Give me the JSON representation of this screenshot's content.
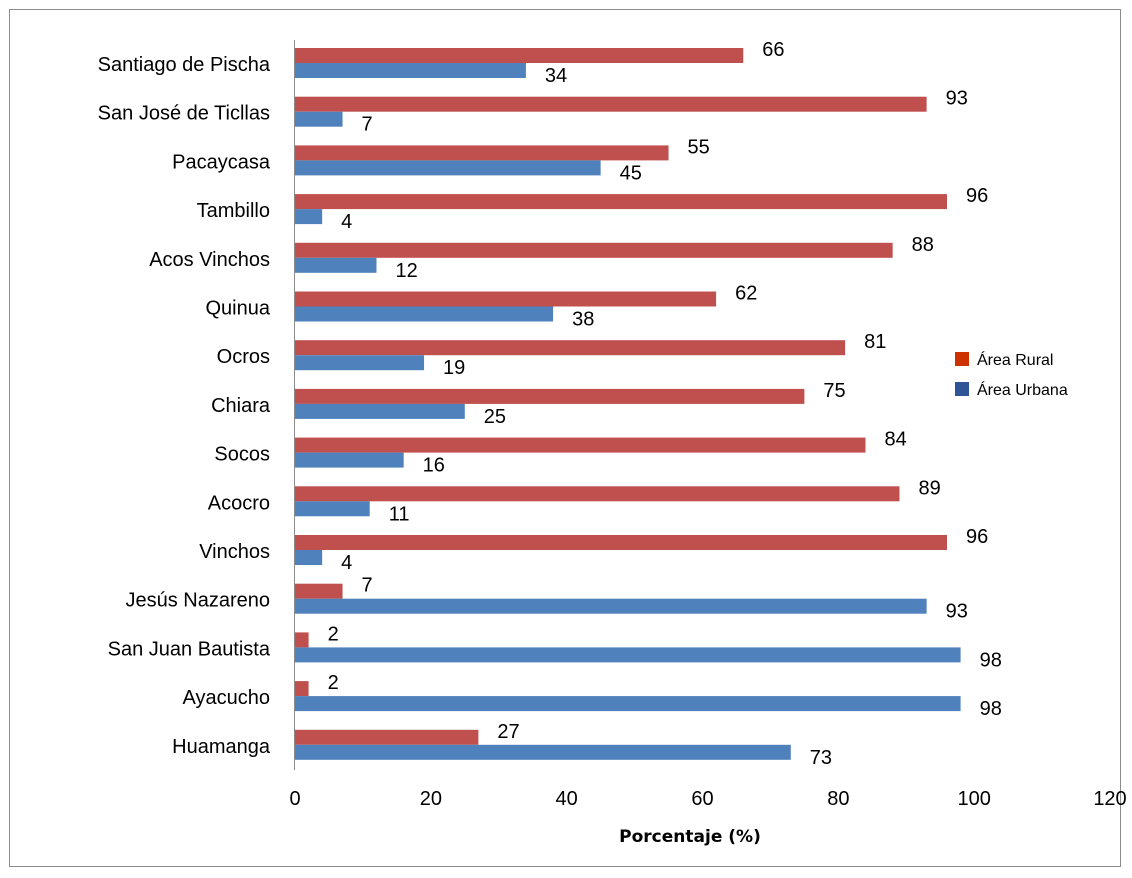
{
  "chart_data": {
    "type": "bar",
    "orientation": "horizontal",
    "title": "",
    "xlabel": "Porcentaje (%)",
    "ylabel": "",
    "xlim": [
      0,
      120
    ],
    "xticks": [
      "0",
      "20",
      "40",
      "60",
      "80",
      "100",
      "120"
    ],
    "grid": false,
    "legend_position": "right",
    "categories": [
      "Santiago de Pischa",
      "San José de Ticllas",
      "Pacaycasa",
      "Tambillo",
      "Acos Vinchos",
      "Quinua",
      "Ocros",
      "Chiara",
      "Socos",
      "Acocro",
      "Vinchos",
      "Jesús Nazareno",
      "San Juan Bautista",
      "Ayacucho",
      "Huamanga"
    ],
    "series": [
      {
        "name": "Área Rural",
        "color": "#c0504d",
        "legend_color": "#cc3300",
        "values": [
          66,
          93,
          55,
          96,
          88,
          62,
          81,
          75,
          84,
          89,
          96,
          7,
          2,
          2,
          27
        ]
      },
      {
        "name": "Área Urbana",
        "color": "#4f81bd",
        "legend_color": "#2f5597",
        "values": [
          34,
          7,
          45,
          4,
          12,
          38,
          19,
          25,
          16,
          11,
          4,
          93,
          98,
          98,
          73
        ]
      }
    ]
  }
}
